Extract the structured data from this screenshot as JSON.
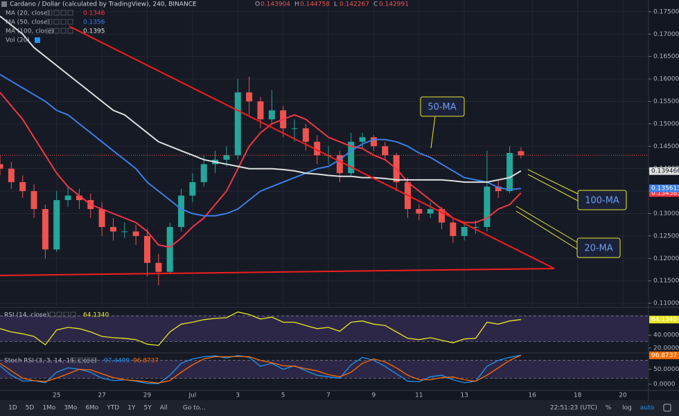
{
  "chart_data": [
    {
      "type": "candlestick",
      "title": "Cardano / Dollar (calculated by TradingView), 240, BINANCE",
      "ohlc_legend": [
        {
          "label": "O",
          "value": 0.143904
        },
        {
          "label": "H",
          "value": 0.144758
        },
        {
          "label": "L",
          "value": 0.142267
        },
        {
          "label": "C",
          "value": 0.142991
        }
      ],
      "x": [
        -8.5,
        -8,
        -7.5,
        -7,
        -6.5,
        -6,
        -5.5,
        -5,
        -4.5,
        -4,
        -3.5,
        -3,
        -2.5,
        -2,
        -1.5,
        -1,
        -0.5,
        0,
        0.5,
        1,
        1.5,
        2,
        2.5,
        3,
        3.5,
        4,
        4.5,
        5,
        5.5,
        6,
        6.5,
        7,
        7.5,
        8,
        8.5,
        9,
        9.5,
        10,
        10.5,
        11,
        11.5,
        12,
        12.5,
        13,
        13.5,
        14,
        14.5
      ],
      "open": [
        0.141,
        0.14,
        0.137,
        0.135,
        0.131,
        0.122,
        0.133,
        0.134,
        0.133,
        0.131,
        0.127,
        0.126,
        0.126,
        0.125,
        0.119,
        0.117,
        0.127,
        0.134,
        0.137,
        0.141,
        0.142,
        0.143,
        0.157,
        0.155,
        0.151,
        0.153,
        0.149,
        0.149,
        0.146,
        0.143,
        0.143,
        0.139,
        0.146,
        0.147,
        0.145,
        0.143,
        0.137,
        0.131,
        0.13,
        0.131,
        0.128,
        0.125,
        0.127,
        0.127,
        0.136,
        0.135,
        0.143904
      ],
      "high": [
        0.143,
        0.1415,
        0.1385,
        0.1365,
        0.132,
        0.135,
        0.136,
        0.1355,
        0.1345,
        0.1325,
        0.129,
        0.128,
        0.1275,
        0.1265,
        0.121,
        0.128,
        0.1355,
        0.139,
        0.143,
        0.144,
        0.145,
        0.16,
        0.1605,
        0.156,
        0.1575,
        0.154,
        0.151,
        0.15,
        0.1475,
        0.145,
        0.144,
        0.148,
        0.148,
        0.1475,
        0.146,
        0.1435,
        0.138,
        0.132,
        0.1325,
        0.1315,
        0.129,
        0.128,
        0.1285,
        0.144,
        0.1375,
        0.145,
        0.144758
      ],
      "low": [
        0.1385,
        0.1355,
        0.1335,
        0.129,
        0.12,
        0.1215,
        0.1315,
        0.131,
        0.129,
        0.125,
        0.124,
        0.1245,
        0.123,
        0.116,
        0.114,
        0.1165,
        0.126,
        0.1325,
        0.136,
        0.139,
        0.1405,
        0.142,
        0.152,
        0.149,
        0.15,
        0.147,
        0.146,
        0.144,
        0.141,
        0.141,
        0.137,
        0.1385,
        0.1445,
        0.144,
        0.142,
        0.135,
        0.129,
        0.1285,
        0.129,
        0.1265,
        0.1235,
        0.124,
        0.1255,
        0.126,
        0.1335,
        0.1345,
        0.142267
      ],
      "close": [
        0.14,
        0.137,
        0.135,
        0.131,
        0.122,
        0.133,
        0.134,
        0.133,
        0.131,
        0.127,
        0.126,
        0.126,
        0.125,
        0.119,
        0.117,
        0.127,
        0.134,
        0.137,
        0.141,
        0.142,
        0.143,
        0.157,
        0.155,
        0.151,
        0.153,
        0.149,
        0.149,
        0.146,
        0.143,
        0.143,
        0.139,
        0.146,
        0.147,
        0.145,
        0.143,
        0.137,
        0.131,
        0.13,
        0.131,
        0.128,
        0.125,
        0.127,
        0.127,
        0.136,
        0.135,
        0.1435,
        0.142991
      ],
      "up_color": "#26a69a",
      "down_color": "#ef5350",
      "series": [
        {
          "name": "MA (20, close)",
          "color": "#f23645",
          "legend_value": 0.1346,
          "tag": 0.134583,
          "values": [
            0.157,
            0.154,
            0.151,
            0.147,
            0.143,
            0.139,
            0.136,
            0.134,
            0.132,
            0.131,
            0.13,
            0.129,
            0.128,
            0.126,
            0.123,
            0.1225,
            0.1245,
            0.127,
            0.129,
            0.132,
            0.135,
            0.14,
            0.145,
            0.148,
            0.15,
            0.151,
            0.152,
            0.151,
            0.149,
            0.147,
            0.146,
            0.145,
            0.1445,
            0.143,
            0.142,
            0.14,
            0.137,
            0.135,
            0.133,
            0.131,
            0.129,
            0.128,
            0.128,
            0.129,
            0.131,
            0.132,
            0.1346
          ]
        },
        {
          "name": "MA (50, close)",
          "color": "#3d7ee8",
          "legend_value": 0.1356,
          "tag": 0.135613,
          "values": [
            0.161,
            0.1595,
            0.158,
            0.1565,
            0.155,
            0.153,
            0.152,
            0.15,
            0.148,
            0.146,
            0.144,
            0.142,
            0.14,
            0.137,
            0.135,
            0.133,
            0.131,
            0.13,
            0.1295,
            0.1295,
            0.13,
            0.131,
            0.133,
            0.135,
            0.136,
            0.137,
            0.138,
            0.139,
            0.14,
            0.1405,
            0.142,
            0.144,
            0.1455,
            0.1465,
            0.1465,
            0.146,
            0.145,
            0.1435,
            0.1425,
            0.141,
            0.1395,
            0.138,
            0.1375,
            0.137,
            0.1358,
            0.1353,
            0.1356
          ]
        },
        {
          "name": "MA (100, close)",
          "color": "#e0e0e0",
          "legend_value": 0.1395,
          "tag": 0.139466,
          "values": [
            0.174,
            0.172,
            0.17,
            0.167,
            0.165,
            0.163,
            0.161,
            0.159,
            0.157,
            0.155,
            0.153,
            0.152,
            0.15,
            0.148,
            0.146,
            0.145,
            0.144,
            0.143,
            0.142,
            0.1415,
            0.141,
            0.1405,
            0.14,
            0.14,
            0.14,
            0.1398,
            0.1395,
            0.139,
            0.1388,
            0.1385,
            0.1383,
            0.1383,
            0.138,
            0.138,
            0.1378,
            0.1375,
            0.1375,
            0.1375,
            0.1375,
            0.1375,
            0.1373,
            0.137,
            0.137,
            0.137,
            0.1375,
            0.138,
            0.1395
          ]
        }
      ],
      "volume_label": "Vol (20)",
      "annotations": [
        "50-MA",
        "100-MA",
        "20-MA"
      ],
      "xlim": [
        -8.5,
        20.1
      ],
      "ylim": [
        0.1094,
        0.1776
      ],
      "grid": true,
      "xticks": [
        {
          "value": -6,
          "label": "25"
        },
        {
          "value": -4,
          "label": "27"
        },
        {
          "value": -2,
          "label": "29"
        },
        {
          "value": 0,
          "label": "Jul"
        },
        {
          "value": 2,
          "label": "3"
        },
        {
          "value": 4,
          "label": "5"
        },
        {
          "value": 6,
          "label": "7"
        },
        {
          "value": 8,
          "label": "9"
        },
        {
          "value": 10,
          "label": "11"
        },
        {
          "value": 12,
          "label": "13"
        },
        {
          "value": 15,
          "label": "16"
        },
        {
          "value": 17,
          "label": "18"
        },
        {
          "value": 19,
          "label": "20"
        }
      ],
      "yticks": [
        {
          "value": 0.11,
          "label": "0.110000"
        },
        {
          "value": 0.115,
          "label": "0.115000"
        },
        {
          "value": 0.12,
          "label": "0.120000"
        },
        {
          "value": 0.125,
          "label": "0.125000"
        },
        {
          "value": 0.13,
          "label": "0.130000"
        },
        {
          "value": 0.135,
          "label": "0.135000"
        },
        {
          "value": 0.14,
          "label": "0.140000"
        },
        {
          "value": 0.145,
          "label": "0.145000"
        },
        {
          "value": 0.15,
          "label": "0.150000"
        },
        {
          "value": 0.155,
          "label": "0.155000"
        },
        {
          "value": 0.16,
          "label": "0.160000"
        },
        {
          "value": 0.165,
          "label": "0.165000"
        },
        {
          "value": 0.17,
          "label": "0.170000"
        },
        {
          "value": 0.175,
          "label": "0.175000"
        }
      ]
    },
    {
      "type": "line",
      "title": "RSI (14, close)",
      "x": [
        -8.5,
        -8,
        -7.5,
        -7,
        -6.5,
        -6,
        -5.5,
        -5,
        -4.5,
        -4,
        -3.5,
        -3,
        -2.5,
        -2,
        -1.5,
        -1,
        -0.5,
        0,
        0.5,
        1,
        1.5,
        2,
        2.5,
        3,
        3.5,
        4,
        4.5,
        5,
        5.5,
        6,
        6.5,
        7,
        7.5,
        8,
        8.5,
        9,
        9.5,
        10,
        10.5,
        11,
        11.5,
        12,
        12.5,
        13,
        13.5,
        14,
        14.5
      ],
      "series": [
        {
          "name": "RSI",
          "color": "#e8e824",
          "legend_value": {
            "value": 64.134,
            "label": "64.1340"
          },
          "tag": {
            "value": 64.134,
            "label": "64.1340"
          },
          "values": [
            50,
            45,
            42,
            38,
            25,
            48,
            52,
            50,
            45,
            38,
            36,
            35,
            33,
            26,
            24,
            45,
            57,
            60,
            64,
            66,
            67,
            76,
            72,
            65,
            68,
            60,
            60,
            55,
            50,
            52,
            46,
            60,
            62,
            57,
            55,
            45,
            35,
            33,
            36,
            32,
            28,
            34,
            35,
            60,
            57,
            62,
            64.134
          ]
        }
      ],
      "band": [
        30,
        70
      ],
      "band_color": "#7e57c2",
      "xlim": [
        -8.5,
        20.1
      ],
      "ylim": [
        13.3,
        81
      ],
      "yticks": [
        {
          "value": 20,
          "label": "20.0000"
        },
        {
          "value": 40,
          "label": "40.0000"
        }
      ]
    },
    {
      "type": "line",
      "title": "Stoch RSI (3, 3, 14, 14, close)",
      "x": [
        -8.5,
        -8,
        -7.5,
        -7,
        -6.5,
        -6,
        -5.5,
        -5,
        -4.5,
        -4,
        -3.5,
        -3,
        -2.5,
        -2,
        -1.5,
        -1,
        -0.5,
        0,
        0.5,
        1,
        1.5,
        2,
        2.5,
        3,
        3.5,
        4,
        4.5,
        5,
        5.5,
        6,
        6.5,
        7,
        7.5,
        8,
        8.5,
        9,
        9.5,
        10,
        10.5,
        11,
        11.5,
        12,
        12.5,
        13,
        13.5,
        14,
        14.5
      ],
      "series": [
        {
          "name": "K",
          "color": "#2196f3",
          "legend_value": 97.4499,
          "values": [
            62,
            30,
            10,
            12,
            5,
            40,
            55,
            50,
            40,
            20,
            12,
            15,
            10,
            3,
            2,
            30,
            70,
            85,
            92,
            95,
            88,
            96,
            90,
            60,
            70,
            50,
            62,
            45,
            30,
            25,
            20,
            65,
            90,
            80,
            60,
            35,
            10,
            8,
            25,
            30,
            15,
            5,
            10,
            60,
            80,
            90,
            97.4499
          ]
        },
        {
          "name": "D",
          "color": "#ff6d00",
          "legend_value": 96.8737,
          "tag": 96.8737,
          "values": [
            70,
            45,
            20,
            12,
            9,
            20,
            35,
            50,
            48,
            35,
            22,
            15,
            12,
            8,
            4,
            12,
            40,
            65,
            85,
            92,
            92,
            93,
            92,
            80,
            72,
            62,
            60,
            52,
            45,
            32,
            25,
            40,
            70,
            85,
            75,
            55,
            30,
            15,
            15,
            22,
            24,
            15,
            10,
            30,
            55,
            80,
            96.8737
          ]
        }
      ],
      "band": [
        20,
        80
      ],
      "band_color": "#7e57c2",
      "xlim": [
        -8.5,
        20.1
      ],
      "ylim": [
        -20.8,
        100
      ],
      "yticks": [
        {
          "value": 0,
          "label": "0.0000"
        },
        {
          "value": 50,
          "label": "50.0000"
        }
      ]
    }
  ],
  "toolbar": {
    "ranges": [
      "1D",
      "5D",
      "1Mo",
      "3Mo",
      "6Mo",
      "YTD",
      "1Y",
      "5Y",
      "All"
    ],
    "goto": "Go to...",
    "clock": "22:51:23 (UTC)",
    "options": [
      "%",
      "log",
      "auto"
    ]
  }
}
